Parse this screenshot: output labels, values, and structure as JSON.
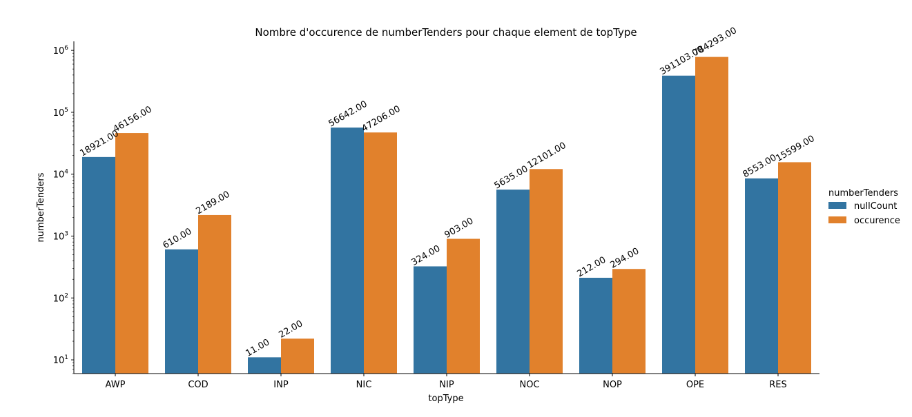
{
  "chart_data": {
    "type": "bar",
    "title": "Nombre d'occurence de numberTenders pour chaque element de topType",
    "xlabel": "topType",
    "ylabel": "numberTenders",
    "yscale": "log",
    "ylim": [
      6,
      1400000
    ],
    "yticks": [
      10,
      100,
      1000,
      10000,
      100000,
      1000000
    ],
    "grid": false,
    "legend": {
      "title": "numberTenders",
      "placement": "right",
      "entries": [
        "nullCount",
        "occurence"
      ]
    },
    "categories": [
      "AWP",
      "COD",
      "INP",
      "NIC",
      "NIP",
      "NOC",
      "NOP",
      "OPE",
      "RES"
    ],
    "series": [
      {
        "name": "nullCount",
        "color": "#3274a1",
        "values": [
          18921,
          610,
          11,
          56642,
          324,
          5635,
          212,
          391103,
          8553
        ],
        "labels": [
          "18921.00",
          "610.00",
          "11.00",
          "56642.00",
          "324.00",
          "5635.00",
          "212.00",
          "391103.00",
          "8553.00"
        ]
      },
      {
        "name": "occurence",
        "color": "#e1812c",
        "values": [
          46156,
          2189,
          22,
          47206,
          903,
          12101,
          294,
          784293,
          15599
        ],
        "labels": [
          "46156.00",
          "2189.00",
          "22.00",
          "47206.00",
          "903.00",
          "12101.00",
          "294.00",
          "784293.00",
          "15599.00"
        ]
      }
    ]
  }
}
